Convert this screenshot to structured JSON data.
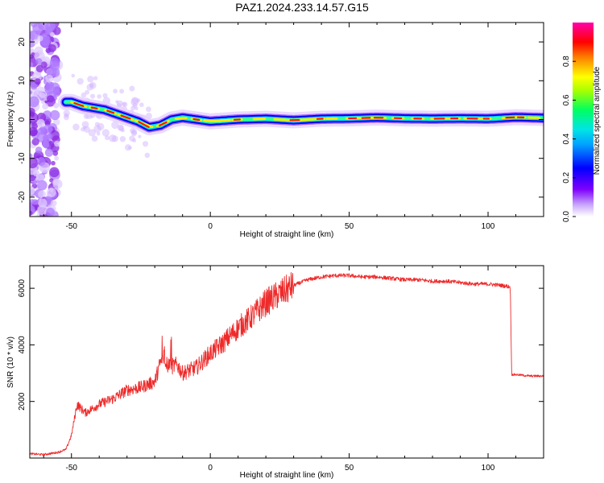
{
  "title": "PAZ1.2024.233.14.57.G15",
  "colorbar": {
    "label": "Normalized spectral amplitude",
    "ticks": [
      "0.0",
      "0.2",
      "0.4",
      "0.6",
      "0.8"
    ],
    "tick_values": [
      0.0,
      0.2,
      0.4,
      0.6,
      0.8
    ],
    "range": [
      0.0,
      1.0
    ],
    "colormap": [
      "#ffffff",
      "#7f00ff",
      "#0000ff",
      "#00e5ff",
      "#00ff60",
      "#ffff00",
      "#ff0000",
      "#ff00aa"
    ]
  },
  "chart_data": [
    {
      "type": "heatmap",
      "title": "",
      "xlabel": "Height of straight line (km)",
      "ylabel": "Frequency (Hz)",
      "xlim": [
        -65,
        120
      ],
      "ylim": [
        -25,
        25
      ],
      "xticks": [
        -50,
        0,
        50,
        100
      ],
      "yticks": [
        -20,
        -10,
        0,
        10,
        20
      ],
      "grid": false,
      "ridge": {
        "name": "",
        "x": [
          -50,
          -46,
          -42,
          -38,
          -34,
          -30,
          -26,
          -22,
          -18,
          -14,
          -10,
          -5,
          0,
          10,
          20,
          30,
          40,
          50,
          60,
          70,
          80,
          90,
          100,
          110,
          120
        ],
        "y": [
          4.5,
          3.5,
          3.0,
          2.5,
          1.5,
          0.5,
          -0.5,
          -2.0,
          -1.5,
          0.0,
          0.5,
          0.0,
          -0.5,
          0.0,
          0.2,
          -0.2,
          0.2,
          0.3,
          0.5,
          0.3,
          0.2,
          0.3,
          0.2,
          0.6,
          0.4
        ]
      },
      "noise_region_x": [
        -65,
        -55
      ]
    },
    {
      "type": "line",
      "title": "",
      "xlabel": "Height of straight line (km)",
      "ylabel": "SNR (10 * v/v)",
      "xlim": [
        -65,
        120
      ],
      "ylim": [
        0,
        6800
      ],
      "xticks": [
        -50,
        0,
        50,
        100
      ],
      "yticks": [
        2000,
        4000,
        6000
      ],
      "grid": false,
      "color": "#ee2a2a",
      "series": [
        {
          "name": "",
          "x": [
            -65,
            -60,
            -55,
            -52,
            -50,
            -48,
            -45,
            -40,
            -35,
            -30,
            -25,
            -20,
            -17,
            -15,
            -12,
            -10,
            -5,
            0,
            5,
            10,
            15,
            20,
            25,
            30,
            35,
            40,
            45,
            50,
            55,
            60,
            65,
            70,
            75,
            80,
            85,
            90,
            95,
            100,
            105,
            108,
            108.5,
            110,
            115,
            120
          ],
          "values": [
            150,
            120,
            200,
            300,
            800,
            1900,
            1600,
            1900,
            2100,
            2400,
            2500,
            2700,
            3700,
            3200,
            3300,
            3000,
            3200,
            3700,
            4100,
            4600,
            5000,
            5500,
            5800,
            6100,
            6300,
            6400,
            6450,
            6450,
            6400,
            6400,
            6350,
            6300,
            6300,
            6250,
            6250,
            6200,
            6150,
            6150,
            6100,
            6050,
            2950,
            2950,
            2900,
            2900
          ]
        }
      ]
    }
  ]
}
